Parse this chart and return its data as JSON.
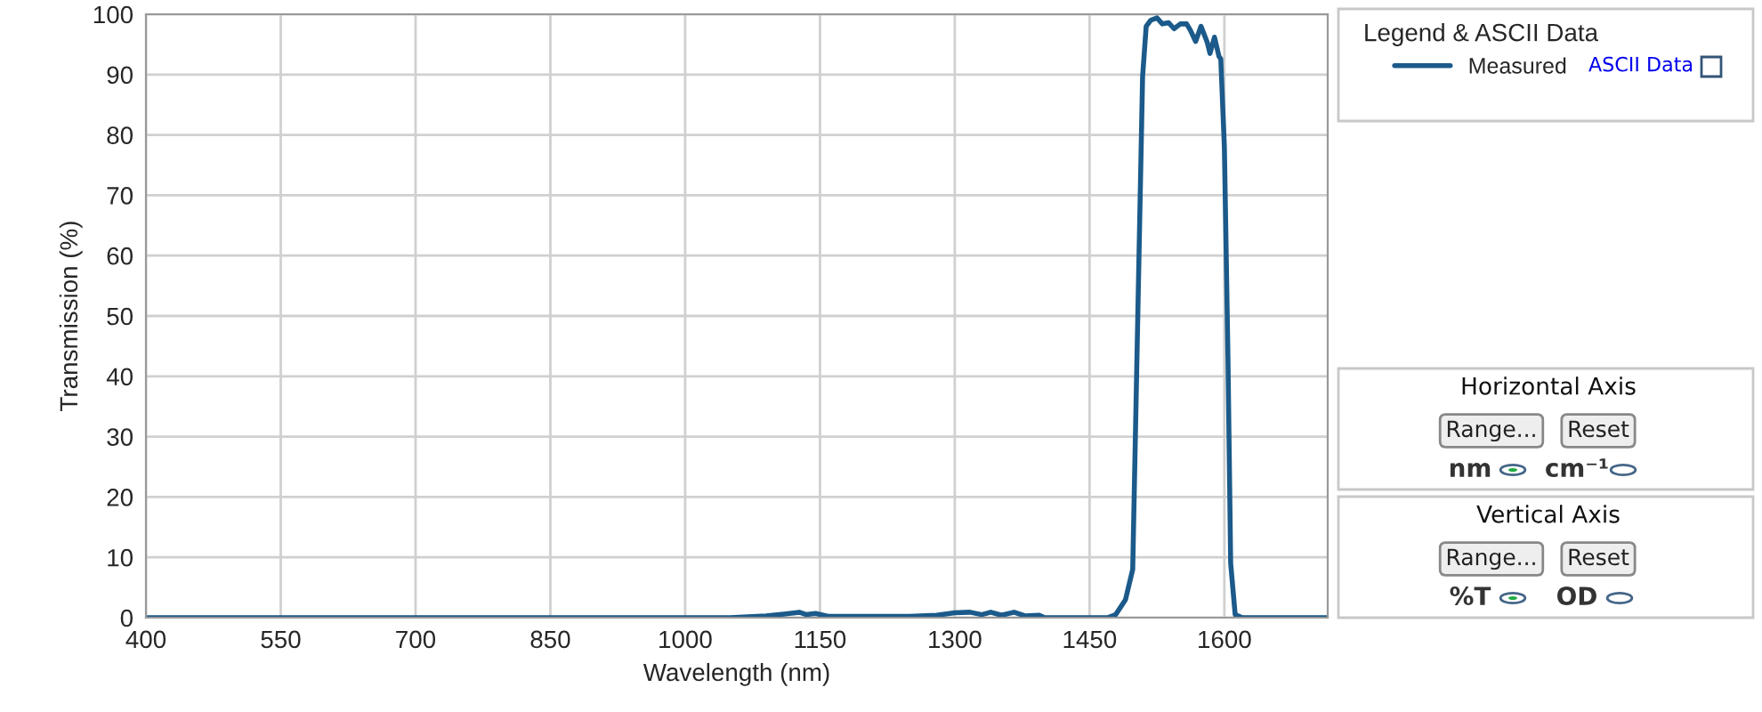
{
  "chart_data": {
    "type": "line",
    "xlabel": "Wavelength (nm)",
    "ylabel": "Transmission (%)",
    "legend_title": "Legend & ASCII Data",
    "xlim": [
      400,
      1715
    ],
    "ylim": [
      0,
      100
    ],
    "xticks": [
      400,
      550,
      700,
      850,
      1000,
      1150,
      1300,
      1450,
      1600
    ],
    "yticks": [
      0,
      10,
      20,
      30,
      40,
      50,
      60,
      70,
      80,
      90,
      100
    ],
    "grid": true,
    "legend": "right",
    "marker": "none",
    "line_style": "solid",
    "series": [
      {
        "name": "Measured",
        "color": "#1b5a8a",
        "x": [
          400,
          1050,
          1090,
          1110,
          1127,
          1135,
          1145,
          1160,
          1250,
          1280,
          1300,
          1317,
          1330,
          1340,
          1352,
          1366,
          1378,
          1394,
          1400,
          1470,
          1479,
          1490,
          1498,
          1505,
          1509,
          1513,
          1518,
          1525,
          1531,
          1538,
          1544,
          1551,
          1558,
          1562,
          1568,
          1574,
          1581,
          1584,
          1589,
          1594,
          1596,
          1600,
          1604,
          1607,
          1612,
          1620,
          1715
        ],
        "values": [
          0,
          0,
          0.3,
          0.6,
          0.9,
          0.5,
          0.7,
          0.2,
          0.2,
          0.4,
          0.8,
          0.9,
          0.5,
          0.9,
          0.4,
          0.9,
          0.3,
          0.4,
          0,
          0,
          0.5,
          3,
          8,
          60,
          89.7,
          98,
          99,
          99.4,
          98.4,
          98.6,
          97.6,
          98.4,
          98.4,
          97.4,
          95.5,
          98,
          95.3,
          93.5,
          96.2,
          93,
          92.6,
          78,
          43,
          9,
          0.5,
          0,
          0
        ]
      }
    ],
    "annotations": [
      "ASCII Data",
      "Horizontal Axis",
      "Range...",
      "Reset",
      "nm",
      "cm⁻¹",
      "Vertical Axis",
      "Range...",
      "Reset",
      "%T",
      "OD"
    ]
  }
}
